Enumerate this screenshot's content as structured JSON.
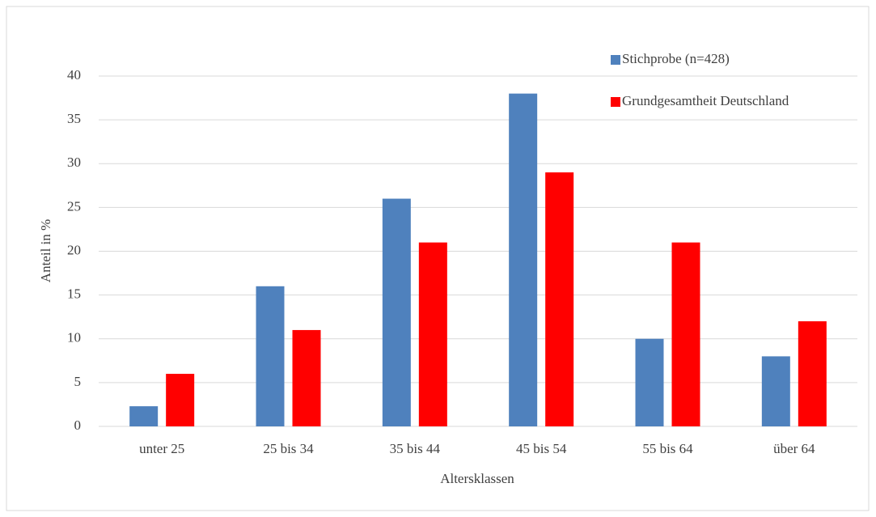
{
  "chart_data": {
    "type": "bar",
    "x_label": "Altersklassen",
    "y_label": "Anteil in %",
    "categories": [
      "unter 25",
      "25 bis 34",
      "35 bis 44",
      "45 bis 54",
      "55 bis 64",
      "über 64"
    ],
    "series": [
      {
        "name": "Stichprobe (n=428)",
        "color": "#4f81bd",
        "values": [
          2.3,
          16,
          26,
          38,
          10,
          8
        ]
      },
      {
        "name": "Grundgesamtheit Deutschland",
        "color": "#ff0000",
        "values": [
          6,
          11,
          21,
          29,
          21,
          12
        ]
      }
    ],
    "ylim": [
      0,
      40
    ],
    "yticks": [
      0,
      5,
      10,
      15,
      20,
      25,
      30,
      35,
      40
    ],
    "grid": true,
    "legend": "top-right"
  }
}
